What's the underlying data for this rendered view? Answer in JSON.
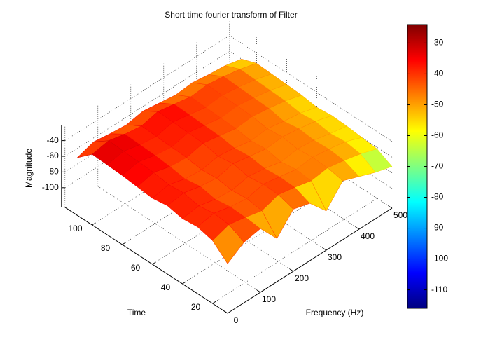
{
  "chart_data": {
    "type": "surface",
    "title": "Short time fourier transform of Filter",
    "xlabel": "Frequency (Hz)",
    "ylabel": "Time",
    "zlabel": "Magnitude",
    "x": [
      0,
      50,
      100,
      150,
      200,
      250,
      300,
      350,
      400,
      450,
      500
    ],
    "y": [
      10,
      20,
      30,
      40,
      50,
      60,
      70,
      80,
      90,
      100,
      110
    ],
    "z": [
      [
        -62,
        -48,
        -44,
        -70,
        -46,
        -52,
        -75,
        -50,
        -58,
        -66,
        -72
      ],
      [
        -45,
        -38,
        -42,
        -47,
        -40,
        -44,
        -49,
        -46,
        -50,
        -55,
        -62
      ],
      [
        -40,
        -36,
        -41,
        -44,
        -39,
        -43,
        -47,
        -45,
        -48,
        -52,
        -60
      ],
      [
        -42,
        -39,
        -44,
        -46,
        -42,
        -45,
        -50,
        -47,
        -49,
        -54,
        -58
      ],
      [
        -38,
        -35,
        -40,
        -43,
        -38,
        -42,
        -46,
        -44,
        -47,
        -51,
        -57
      ],
      [
        -41,
        -37,
        -43,
        -45,
        -41,
        -44,
        -48,
        -46,
        -50,
        -53,
        -59
      ],
      [
        -39,
        -34,
        -40,
        -42,
        -37,
        -41,
        -45,
        -43,
        -46,
        -50,
        -56
      ],
      [
        -37,
        -33,
        -38,
        -41,
        -36,
        -40,
        -44,
        -42,
        -45,
        -49,
        -55
      ],
      [
        -36,
        -32,
        -37,
        -40,
        -35,
        -39,
        -43,
        -41,
        -44,
        -48,
        -54
      ],
      [
        -35,
        -31,
        -36,
        -39,
        -34,
        -38,
        -42,
        -40,
        -43,
        -47,
        -53
      ],
      [
        -52,
        -45,
        -48,
        -50,
        -46,
        -49,
        -52,
        -50,
        -53,
        -55,
        -60
      ]
    ],
    "xlim": [
      0,
      500
    ],
    "ylim": [
      10,
      118
    ],
    "zlim": [
      -125,
      -20
    ],
    "xticks": [
      0,
      100,
      200,
      300,
      400,
      500
    ],
    "yticks": [
      20,
      40,
      60,
      80,
      100
    ],
    "zticks": [
      -100,
      -80,
      -60,
      -40
    ],
    "grid": true,
    "colormap": "jet",
    "colorbar": {
      "clim": [
        -116,
        -24
      ],
      "ticks": [
        -110,
        -100,
        -90,
        -80,
        -70,
        -60,
        -50,
        -40,
        -30
      ]
    }
  }
}
